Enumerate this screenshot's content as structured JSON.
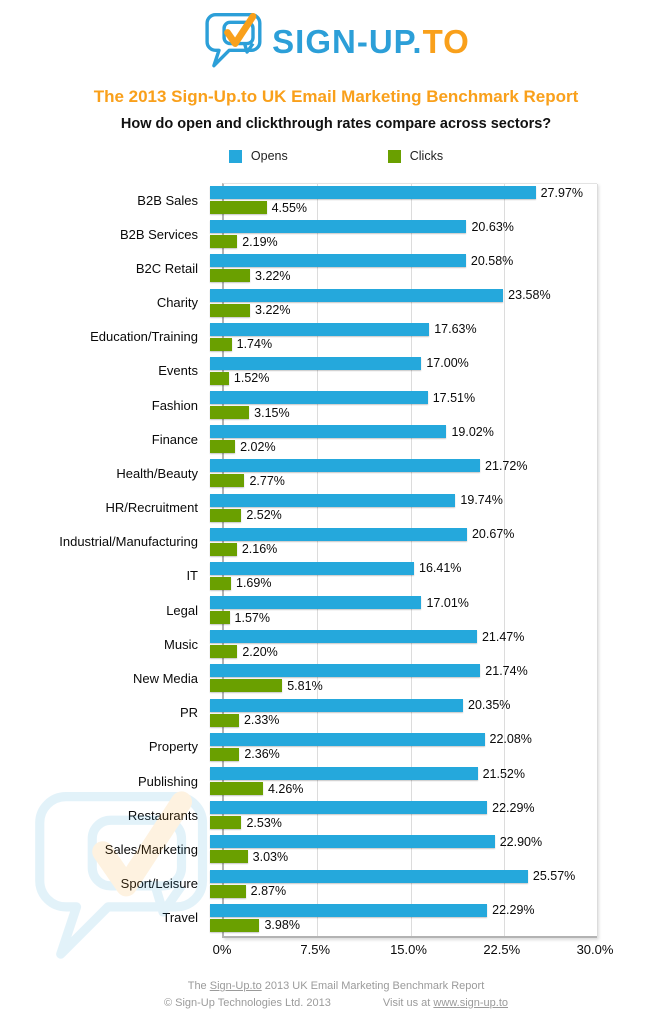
{
  "logo": {
    "icon": "speech-bubbles-check-icon",
    "text_blue": "SIGN-UP.",
    "text_orange": "TO",
    "blue": "#2C9FD8",
    "orange": "#F9A01B"
  },
  "header": {
    "title": "The 2013 Sign-Up.to UK Email Marketing Benchmark Report",
    "subtitle": "How do open and clickthrough rates compare across sectors?"
  },
  "chart_data": {
    "type": "bar",
    "orientation": "horizontal",
    "title": "How do open and clickthrough rates compare across sectors?",
    "categories": [
      "B2B Sales",
      "B2B Services",
      "B2C Retail",
      "Charity",
      "Education/Training",
      "Events",
      "Fashion",
      "Finance",
      "Health/Beauty",
      "HR/Recruitment",
      "Industrial/Manufacturing",
      "IT",
      "Legal",
      "Music",
      "New Media",
      "PR",
      "Property",
      "Publishing",
      "Restaurants",
      "Sales/Marketing",
      "Sport/Leisure",
      "Travel"
    ],
    "series": [
      {
        "name": "Opens",
        "color": "#25A8DC",
        "values": [
          27.97,
          20.63,
          20.58,
          23.58,
          17.63,
          17.0,
          17.51,
          19.02,
          21.72,
          19.74,
          20.67,
          16.41,
          17.01,
          21.47,
          21.74,
          20.35,
          22.08,
          21.52,
          22.29,
          22.9,
          25.57,
          22.29
        ]
      },
      {
        "name": "Clicks",
        "color": "#6AA000",
        "values": [
          4.55,
          2.19,
          3.22,
          3.22,
          1.74,
          1.52,
          3.15,
          2.02,
          2.77,
          2.52,
          2.16,
          1.69,
          1.57,
          2.2,
          5.81,
          2.33,
          2.36,
          4.26,
          2.53,
          3.03,
          2.87,
          3.98
        ]
      }
    ],
    "value_label_format": "0.00%",
    "x_ticks": [
      "0%",
      "7.5%",
      "15.0%",
      "22.5%",
      "30.0%"
    ],
    "x_tick_positions_pct": [
      0,
      25,
      50,
      75,
      100
    ],
    "xlim": [
      0,
      30
    ],
    "grid": true,
    "legend_position": "top"
  },
  "footer": {
    "line1_prefix": "The ",
    "line1_link": "Sign-Up.to",
    "line1_suffix": " 2013 UK Email Marketing Benchmark Report",
    "copyright": "© Sign-Up Technologies Ltd. 2013",
    "visit_prefix": "Visit us at ",
    "visit_link": "www.sign-up.to"
  }
}
